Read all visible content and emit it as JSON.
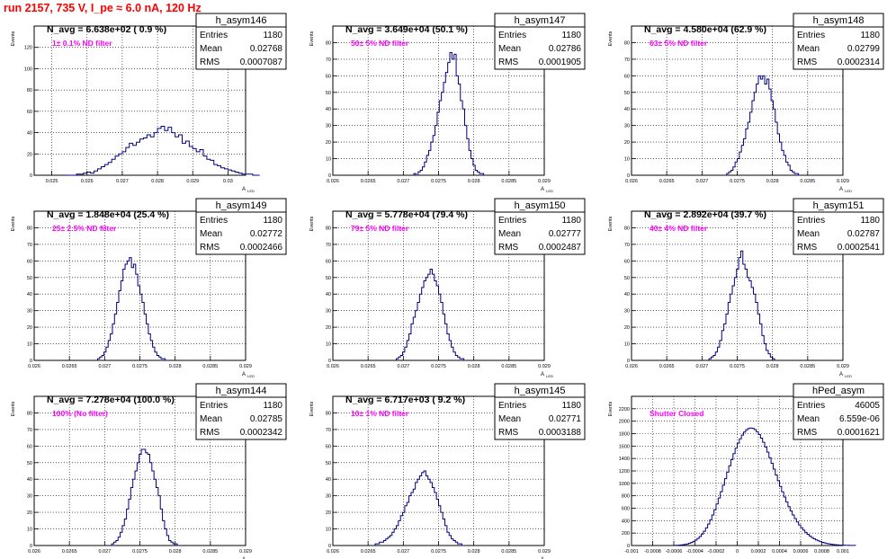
{
  "run_title": "run 2157,   735 V, I_pe ≈ 6.0 nA, 120 Hz",
  "colors": {
    "histogram": "#000080",
    "title": "#ff0000",
    "filter_label": "#ff00ff",
    "grid": "#000000",
    "axis": "#000000"
  },
  "chart_data": [
    {
      "type": "bar",
      "hist_name": "h_asym146",
      "nave": "N_avg = 6.638e+02 ( 0.9 %)",
      "filter": "1± 0.1% ND filter",
      "stats": {
        "entries": "1180",
        "mean": "0.02768",
        "rms": "0.0007087"
      },
      "ylabel": "Events",
      "xlabel": "A_LED",
      "xlim": [
        0.0245,
        0.0305
      ],
      "ylim": [
        0,
        140
      ],
      "x_ticks": [
        "0.025",
        "0.026",
        "0.027",
        "0.028",
        "0.029",
        "0.03"
      ],
      "x_tick_values": [
        0.025,
        0.026,
        0.027,
        0.028,
        0.029,
        0.03
      ],
      "y_ticks": [
        "0",
        "20",
        "40",
        "60",
        "80",
        "100",
        "120"
      ],
      "y_tick_values": [
        0,
        20,
        40,
        60,
        80,
        100,
        120
      ],
      "bin_start": 0.0254,
      "bin_width": 0.0001,
      "counts": [
        0,
        0,
        0,
        1,
        1,
        2,
        3,
        2,
        4,
        6,
        8,
        10,
        12,
        15,
        18,
        20,
        22,
        26,
        30,
        28,
        31,
        34,
        35,
        38,
        36,
        40,
        44,
        46,
        42,
        45,
        40,
        36,
        38,
        30,
        32,
        27,
        25,
        22,
        24,
        18,
        15,
        14,
        10,
        9,
        7,
        6,
        5,
        4,
        3,
        2,
        1,
        1,
        1,
        0,
        0
      ]
    },
    {
      "type": "bar",
      "hist_name": "h_asym147",
      "nave": "N_avg = 3.649e+04 (50.1 %)",
      "filter": "50± 5% ND filter",
      "stats": {
        "entries": "1180",
        "mean": "0.02786",
        "rms": "0.0001905"
      },
      "ylabel": "Events",
      "xlabel": "A_LED",
      "xlim": [
        0.026,
        0.029
      ],
      "ylim": [
        0,
        90
      ],
      "x_ticks": [
        "0.026",
        "0.0265",
        "0.027",
        "0.0275",
        "0.028",
        "0.0285",
        "0.029"
      ],
      "x_tick_values": [
        0.026,
        0.0265,
        0.027,
        0.0275,
        0.028,
        0.0285,
        0.029
      ],
      "y_ticks": [
        "0",
        "10",
        "20",
        "30",
        "40",
        "50",
        "60",
        "70",
        "80"
      ],
      "y_tick_values": [
        0,
        10,
        20,
        30,
        40,
        50,
        60,
        70,
        80
      ],
      "bin_start": 0.02715,
      "bin_width": 3e-05,
      "counts": [
        1,
        0,
        2,
        3,
        5,
        8,
        12,
        15,
        20,
        24,
        30,
        38,
        45,
        50,
        56,
        62,
        68,
        74,
        70,
        73,
        60,
        55,
        45,
        40,
        30,
        22,
        15,
        10,
        6,
        3,
        2,
        1,
        1,
        0
      ]
    },
    {
      "type": "bar",
      "hist_name": "h_asym148",
      "nave": "N_avg = 4.580e+04 (62.9 %)",
      "filter": "63± 5% ND filter",
      "stats": {
        "entries": "1180",
        "mean": "0.02799",
        "rms": "0.0002314"
      },
      "ylabel": "Events",
      "xlabel": "A_LED",
      "xlim": [
        0.026,
        0.029
      ],
      "ylim": [
        0,
        90
      ],
      "x_ticks": [
        "0.026",
        "0.0265",
        "0.027",
        "0.0275",
        "0.028",
        "0.0285",
        "0.029"
      ],
      "x_tick_values": [
        0.026,
        0.0265,
        0.027,
        0.0275,
        0.028,
        0.0285,
        0.029
      ],
      "y_ticks": [
        "0",
        "10",
        "20",
        "30",
        "40",
        "50",
        "60",
        "70",
        "80"
      ],
      "y_tick_values": [
        0,
        10,
        20,
        30,
        40,
        50,
        60,
        70,
        80
      ],
      "bin_start": 0.02735,
      "bin_width": 3e-05,
      "counts": [
        1,
        2,
        3,
        5,
        8,
        10,
        14,
        18,
        22,
        28,
        32,
        38,
        45,
        50,
        55,
        60,
        58,
        60,
        55,
        58,
        52,
        45,
        40,
        32,
        25,
        20,
        15,
        12,
        8,
        6,
        3,
        2,
        1,
        1,
        0
      ]
    },
    {
      "type": "bar",
      "hist_name": "h_asym149",
      "nave": "N_avg = 1.848e+04 (25.4 %)",
      "filter": "25± 2.5% ND filter",
      "stats": {
        "entries": "1180",
        "mean": "0.02772",
        "rms": "0.0002466"
      },
      "ylabel": "Events",
      "xlabel": "A_LED",
      "xlim": [
        0.026,
        0.029
      ],
      "ylim": [
        0,
        90
      ],
      "x_ticks": [
        "0.026",
        "0.0265",
        "0.027",
        "0.0275",
        "0.028",
        "0.0285",
        "0.029"
      ],
      "x_tick_values": [
        0.026,
        0.0265,
        0.027,
        0.0275,
        0.028,
        0.0285,
        0.029
      ],
      "y_ticks": [
        "0",
        "10",
        "20",
        "30",
        "40",
        "50",
        "60",
        "70",
        "80"
      ],
      "y_tick_values": [
        0,
        10,
        20,
        30,
        40,
        50,
        60,
        70,
        80
      ],
      "bin_start": 0.0269,
      "bin_width": 3e-05,
      "counts": [
        1,
        2,
        3,
        5,
        8,
        12,
        16,
        22,
        28,
        35,
        42,
        48,
        55,
        58,
        60,
        62,
        56,
        58,
        52,
        45,
        40,
        35,
        28,
        22,
        16,
        12,
        8,
        5,
        3,
        2,
        1,
        1,
        0
      ]
    },
    {
      "type": "bar",
      "hist_name": "h_asym150",
      "nave": "N_avg = 5.778e+04 (79.4 %)",
      "filter": "79± 5% ND filter",
      "stats": {
        "entries": "1180",
        "mean": "0.02777",
        "rms": "0.0002487"
      },
      "ylabel": "Events",
      "xlabel": "A_LED",
      "xlim": [
        0.026,
        0.029
      ],
      "ylim": [
        0,
        90
      ],
      "x_ticks": [
        "0.026",
        "0.0265",
        "0.027",
        "0.0275",
        "0.028",
        "0.0285",
        "0.029"
      ],
      "x_tick_values": [
        0.026,
        0.0265,
        0.027,
        0.0275,
        0.028,
        0.0285,
        0.029
      ],
      "y_ticks": [
        "0",
        "10",
        "20",
        "30",
        "40",
        "50",
        "60",
        "70",
        "80"
      ],
      "y_tick_values": [
        0,
        10,
        20,
        30,
        40,
        50,
        60,
        70,
        80
      ],
      "bin_start": 0.0269,
      "bin_width": 3e-05,
      "counts": [
        1,
        2,
        3,
        5,
        8,
        12,
        16,
        22,
        26,
        30,
        35,
        40,
        44,
        48,
        50,
        52,
        55,
        52,
        48,
        45,
        40,
        35,
        28,
        22,
        16,
        12,
        8,
        5,
        3,
        2,
        1,
        1,
        0
      ]
    },
    {
      "type": "bar",
      "hist_name": "h_asym151",
      "nave": "N_avg = 2.892e+04 (39.7 %)",
      "filter": "40± 4% ND filter",
      "stats": {
        "entries": "1180",
        "mean": "0.02787",
        "rms": "0.0002541"
      },
      "ylabel": "Events",
      "xlabel": "A_LED",
      "xlim": [
        0.026,
        0.029
      ],
      "ylim": [
        0,
        90
      ],
      "x_ticks": [
        "0.026",
        "0.0265",
        "0.027",
        "0.0275",
        "0.028",
        "0.0285",
        "0.029"
      ],
      "x_tick_values": [
        0.026,
        0.0265,
        0.027,
        0.0275,
        0.028,
        0.0285,
        0.029
      ],
      "y_ticks": [
        "0",
        "10",
        "20",
        "30",
        "40",
        "50",
        "60",
        "70",
        "80"
      ],
      "y_tick_values": [
        0,
        10,
        20,
        30,
        40,
        50,
        60,
        70,
        80
      ],
      "bin_start": 0.0271,
      "bin_width": 3e-05,
      "counts": [
        1,
        2,
        3,
        5,
        8,
        12,
        18,
        22,
        28,
        35,
        40,
        45,
        50,
        55,
        62,
        66,
        58,
        55,
        50,
        48,
        44,
        40,
        35,
        28,
        22,
        15,
        10,
        6,
        4,
        2,
        1,
        0
      ]
    },
    {
      "type": "bar",
      "hist_name": "h_asym144",
      "nave": "N_avg = 7.278e+04 (100.0 %)",
      "filter": "100% (No filter)",
      "stats": {
        "entries": "1180",
        "mean": "0.02785",
        "rms": "0.0002342"
      },
      "ylabel": "Events",
      "xlabel": "A_LED",
      "xlim": [
        0.026,
        0.029
      ],
      "ylim": [
        0,
        90
      ],
      "x_ticks": [
        "0.026",
        "0.0265",
        "0.027",
        "0.0275",
        "0.028",
        "0.0285",
        "0.029"
      ],
      "x_tick_values": [
        0.026,
        0.0265,
        0.027,
        0.0275,
        0.028,
        0.0285,
        0.029
      ],
      "y_ticks": [
        "0",
        "10",
        "20",
        "30",
        "40",
        "50",
        "60",
        "70",
        "80"
      ],
      "y_tick_values": [
        0,
        10,
        20,
        30,
        40,
        50,
        60,
        70,
        80
      ],
      "bin_start": 0.0271,
      "bin_width": 3e-05,
      "counts": [
        1,
        2,
        3,
        5,
        8,
        12,
        16,
        22,
        28,
        35,
        40,
        45,
        50,
        55,
        58,
        58,
        56,
        55,
        50,
        45,
        40,
        35,
        30,
        22,
        15,
        10,
        6,
        3,
        2,
        1,
        1,
        0
      ]
    },
    {
      "type": "bar",
      "hist_name": "h_asym145",
      "nave": "N_avg = 6.717e+03 ( 9.2 %)",
      "filter": "10± 1% ND filter",
      "stats": {
        "entries": "1180",
        "mean": "0.02771",
        "rms": "0.0003188"
      },
      "ylabel": "Events",
      "xlabel": "A_LED",
      "xlim": [
        0.026,
        0.029
      ],
      "ylim": [
        0,
        90
      ],
      "x_ticks": [
        "0.026",
        "0.0265",
        "0.027",
        "0.0275",
        "0.028",
        "0.0285",
        "0.029"
      ],
      "x_tick_values": [
        0.026,
        0.0265,
        0.027,
        0.0275,
        0.028,
        0.0285,
        0.029
      ],
      "y_ticks": [
        "0",
        "10",
        "20",
        "30",
        "40",
        "50",
        "60",
        "70",
        "80"
      ],
      "y_tick_values": [
        0,
        10,
        20,
        30,
        40,
        50,
        60,
        70,
        80
      ],
      "bin_start": 0.0266,
      "bin_width": 3e-05,
      "counts": [
        1,
        1,
        2,
        2,
        3,
        4,
        5,
        6,
        8,
        10,
        12,
        15,
        18,
        20,
        24,
        26,
        30,
        32,
        34,
        38,
        40,
        42,
        44,
        45,
        42,
        40,
        38,
        35,
        32,
        28,
        24,
        20,
        16,
        12,
        8,
        6,
        4,
        3,
        2,
        1,
        1,
        0
      ]
    },
    {
      "type": "bar",
      "hist_name": "hPed_asym",
      "nave": "",
      "filter": "Shutter Closed",
      "stats": {
        "entries": "46005",
        "mean": "6.559e-06",
        "rms": "0.0001621"
      },
      "ylabel": "Events",
      "xlabel": "",
      "xlim": [
        -0.001,
        0.001
      ],
      "ylim": [
        0,
        2400
      ],
      "x_ticks": [
        "-0.001",
        "-0.0008",
        "-0.0006",
        "-0.0004",
        "-0.0002",
        "0",
        "0.0002",
        "0.0004",
        "0.0006",
        "0.0008",
        "0.001"
      ],
      "x_tick_values": [
        -0.001,
        -0.0008,
        -0.0006,
        -0.0004,
        -0.0002,
        0,
        0.0002,
        0.0004,
        0.0006,
        0.0008,
        0.001
      ],
      "y_ticks": [
        "0",
        "200",
        "400",
        "600",
        "800",
        "1000",
        "1200",
        "1400",
        "1600",
        "1800",
        "2000",
        "2200"
      ],
      "y_tick_values": [
        0,
        200,
        400,
        600,
        800,
        1000,
        1200,
        1400,
        1600,
        1800,
        2000,
        2200
      ],
      "bin_start": -0.0006,
      "bin_width": 2e-05,
      "counts": [
        2,
        4,
        6,
        9,
        13,
        18,
        26,
        36,
        49,
        66,
        87,
        113,
        145,
        184,
        230,
        283,
        345,
        414,
        492,
        577,
        668,
        765,
        866,
        970,
        1075,
        1180,
        1283,
        1383,
        1478,
        1566,
        1646,
        1717,
        1777,
        1825,
        1861,
        1883,
        1891,
        1885,
        1865,
        1831,
        1785,
        1728,
        1661,
        1585,
        1502,
        1414,
        1322,
        1229,
        1135,
        1042,
        951,
        864,
        780,
        700,
        625,
        556,
        492,
        433,
        380,
        331,
        287,
        247,
        212,
        181,
        153,
        129,
        108,
        90,
        75,
        62,
        51,
        41,
        33,
        27,
        21,
        17,
        13,
        10,
        8,
        6,
        5,
        4,
        3,
        2,
        2,
        1
      ]
    }
  ]
}
